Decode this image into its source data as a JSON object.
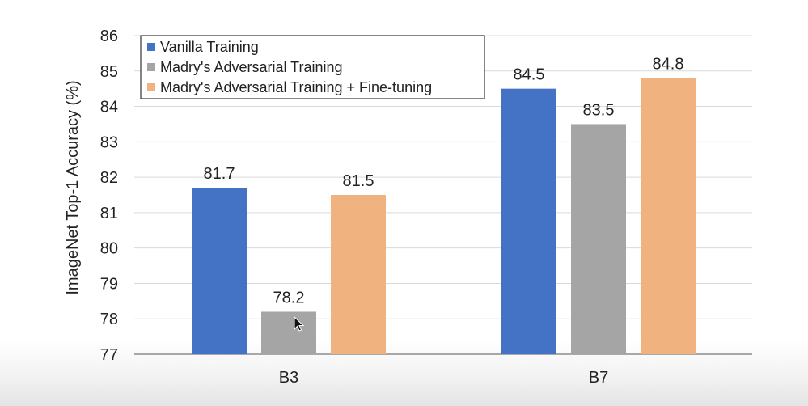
{
  "chart_data": {
    "type": "bar",
    "ylabel": "ImageNet Top-1 Accuracy (%)",
    "xlabel": "",
    "ylim": [
      77,
      86
    ],
    "yticks": [
      77,
      78,
      79,
      80,
      81,
      82,
      83,
      84,
      85,
      86
    ],
    "grid": true,
    "legend_position": "top-left",
    "categories": [
      "B3",
      "B7"
    ],
    "series": [
      {
        "name": "Vanilla Training",
        "color": "#4472c4",
        "values": [
          81.7,
          84.5
        ]
      },
      {
        "name": "Madry's Adversarial Training",
        "color": "#a5a5a5",
        "values": [
          78.2,
          83.5
        ]
      },
      {
        "name": "Madry's Adversarial Training + Fine-tuning",
        "color": "#f0b27e",
        "values": [
          81.5,
          84.8
        ]
      }
    ]
  }
}
